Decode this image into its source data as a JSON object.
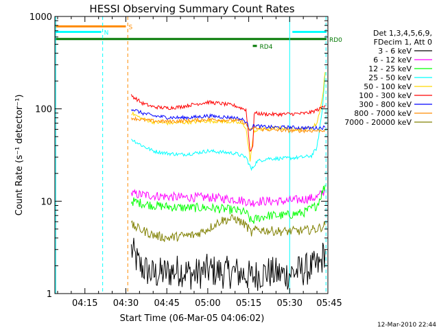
{
  "chart_data": {
    "type": "line",
    "title": "HESSI Observing Summary Count Rates",
    "xlabel": "Start Time (06-Mar-05 04:06:02)",
    "ylabel": "Count Rate (s⁻¹ detector⁻¹)",
    "yscale": "log",
    "ylim": [
      1,
      1000
    ],
    "xlim_minutes": [
      4.0,
      104.0
    ],
    "x_ticks": [
      {
        "label": "04:15",
        "minute": 15
      },
      {
        "label": "04:30",
        "minute": 30
      },
      {
        "label": "04:45",
        "minute": 45
      },
      {
        "label": "05:00",
        "minute": 60
      },
      {
        "label": "05:15",
        "minute": 75
      },
      {
        "label": "05:30",
        "minute": 90
      },
      {
        "label": "05:45",
        "minute": 105
      }
    ],
    "y_ticks": [
      {
        "label": "1",
        "value": 1
      },
      {
        "label": "10",
        "value": 10
      },
      {
        "label": "100",
        "value": 100
      },
      {
        "label": "1000",
        "value": 1000
      }
    ],
    "legend_header": [
      "Det 1,3,4,5,6,9,",
      "FDecim 1, Att 0"
    ],
    "legend_placement": "right",
    "series": [
      {
        "name": "3 - 6 keV",
        "color": "#000000",
        "points": [
          [
            32,
            3.0
          ],
          [
            35,
            2.0
          ],
          [
            40,
            1.6
          ],
          [
            45,
            1.7
          ],
          [
            50,
            1.8
          ],
          [
            55,
            1.6
          ],
          [
            60,
            1.8
          ],
          [
            65,
            1.7
          ],
          [
            70,
            1.7
          ],
          [
            74,
            1.6
          ],
          [
            76,
            1.5
          ],
          [
            78,
            1.6
          ],
          [
            82,
            1.7
          ],
          [
            88,
            1.6
          ],
          [
            95,
            1.8
          ],
          [
            101,
            2.0
          ],
          [
            103,
            3.0
          ]
        ]
      },
      {
        "name": "6 - 12 keV",
        "color": "#ff00ff",
        "points": [
          [
            32,
            12
          ],
          [
            40,
            11.5
          ],
          [
            50,
            11
          ],
          [
            60,
            11
          ],
          [
            70,
            10.5
          ],
          [
            74,
            10
          ],
          [
            76,
            9.5
          ],
          [
            78,
            10
          ],
          [
            82,
            10
          ],
          [
            88,
            10
          ],
          [
            95,
            10.5
          ],
          [
            100,
            11
          ],
          [
            103,
            13
          ]
        ]
      },
      {
        "name": "12 - 25 keV",
        "color": "#00ff00",
        "points": [
          [
            32,
            10
          ],
          [
            40,
            9
          ],
          [
            50,
            8.5
          ],
          [
            60,
            8.5
          ],
          [
            70,
            8
          ],
          [
            74,
            7.5
          ],
          [
            76,
            6
          ],
          [
            78,
            6.5
          ],
          [
            82,
            7
          ],
          [
            88,
            7
          ],
          [
            95,
            7.5
          ],
          [
            100,
            9
          ],
          [
            103,
            15
          ]
        ]
      },
      {
        "name": "25 - 50 keV",
        "color": "#00ffff",
        "points": [
          [
            32,
            47
          ],
          [
            36,
            40
          ],
          [
            40,
            35
          ],
          [
            45,
            33
          ],
          [
            50,
            32
          ],
          [
            55,
            33
          ],
          [
            60,
            35
          ],
          [
            65,
            34
          ],
          [
            70,
            33
          ],
          [
            74,
            30
          ],
          [
            76,
            22
          ],
          [
            78,
            27
          ],
          [
            82,
            29
          ],
          [
            88,
            29
          ],
          [
            95,
            30
          ],
          [
            98,
            31
          ],
          [
            100,
            38
          ],
          [
            102,
            100
          ],
          [
            103,
            250
          ]
        ]
      },
      {
        "name": "50 - 100 keV",
        "color": "#ffd700",
        "points": [
          [
            32,
            90
          ],
          [
            36,
            78
          ],
          [
            40,
            72
          ],
          [
            45,
            70
          ],
          [
            50,
            71
          ],
          [
            55,
            72
          ],
          [
            60,
            74
          ],
          [
            65,
            73
          ],
          [
            70,
            72
          ],
          [
            73,
            68
          ],
          [
            74,
            62
          ],
          [
            75.5,
            28
          ],
          [
            77,
            58
          ],
          [
            80,
            60
          ],
          [
            85,
            62
          ],
          [
            90,
            61
          ],
          [
            95,
            60
          ],
          [
            98,
            62
          ],
          [
            100,
            70
          ],
          [
            102,
            130
          ],
          [
            103,
            250
          ]
        ]
      },
      {
        "name": "100 - 300 keV",
        "color": "#ff0000",
        "points": [
          [
            32,
            140
          ],
          [
            36,
            115
          ],
          [
            40,
            105
          ],
          [
            45,
            102
          ],
          [
            50,
            105
          ],
          [
            55,
            112
          ],
          [
            60,
            118
          ],
          [
            65,
            114
          ],
          [
            70,
            108
          ],
          [
            73,
            100
          ],
          [
            74,
            98
          ],
          [
            75,
            50
          ],
          [
            75.5,
            35
          ],
          [
            76.5,
            38
          ],
          [
            77,
            90
          ],
          [
            80,
            88
          ],
          [
            85,
            87
          ],
          [
            90,
            88
          ],
          [
            95,
            89
          ],
          [
            98,
            92
          ],
          [
            101,
            100
          ],
          [
            103,
            110
          ]
        ]
      },
      {
        "name": "300 - 800 keV",
        "color": "#0000ff",
        "points": [
          [
            32,
            100
          ],
          [
            36,
            90
          ],
          [
            40,
            84
          ],
          [
            45,
            81
          ],
          [
            50,
            80
          ],
          [
            55,
            81
          ],
          [
            60,
            84
          ],
          [
            65,
            82
          ],
          [
            70,
            80
          ],
          [
            73,
            76
          ],
          [
            74,
            72
          ],
          [
            75.5,
            60
          ],
          [
            77,
            66
          ],
          [
            80,
            64
          ],
          [
            85,
            63
          ],
          [
            90,
            63
          ],
          [
            95,
            62
          ],
          [
            100,
            62
          ],
          [
            103,
            63
          ]
        ]
      },
      {
        "name": "800 - 7000 keV",
        "color": "#ff8c00",
        "points": [
          [
            32,
            80
          ],
          [
            36,
            76
          ],
          [
            40,
            74
          ],
          [
            45,
            73
          ],
          [
            50,
            74
          ],
          [
            55,
            75
          ],
          [
            60,
            77
          ],
          [
            65,
            76
          ],
          [
            70,
            75
          ],
          [
            73,
            72
          ],
          [
            74,
            68
          ],
          [
            75.5,
            58
          ],
          [
            77,
            62
          ],
          [
            80,
            60
          ],
          [
            85,
            59
          ],
          [
            90,
            58
          ],
          [
            95,
            58
          ],
          [
            100,
            58
          ],
          [
            103,
            59
          ]
        ]
      },
      {
        "name": "7000 - 20000 keV",
        "color": "#808000",
        "points": [
          [
            32,
            5.5
          ],
          [
            35,
            5
          ],
          [
            40,
            4.3
          ],
          [
            45,
            4
          ],
          [
            50,
            4.2
          ],
          [
            55,
            4.3
          ],
          [
            60,
            5
          ],
          [
            65,
            6.2
          ],
          [
            70,
            6.5
          ],
          [
            74,
            5.5
          ],
          [
            76,
            4.5
          ],
          [
            78,
            5
          ],
          [
            82,
            4.8
          ],
          [
            88,
            4.7
          ],
          [
            95,
            4.8
          ],
          [
            100,
            5
          ],
          [
            103,
            5.5
          ]
        ]
      }
    ],
    "vertical_markers": [
      {
        "minute": 4.3,
        "color": "#00ffff",
        "style": "solid"
      },
      {
        "minute": 21.5,
        "color": "#00ffff",
        "style": "dashed"
      },
      {
        "minute": 30.7,
        "color": "#ff8c00",
        "style": "dashed"
      },
      {
        "minute": 90.0,
        "color": "#00ffff",
        "style": "solid"
      },
      {
        "minute": 103.3,
        "color": "#00ffff",
        "style": "dashed"
      }
    ],
    "flag_bars": [
      {
        "label": "S",
        "color": "#ff8c00",
        "start": 4.0,
        "end": 30.0,
        "value": 780
      },
      {
        "label": "N",
        "color": "#00ffff",
        "start": 4.0,
        "end": 21.0,
        "value": 680
      },
      {
        "label": "RD0",
        "color": "#007700",
        "start": 4.0,
        "end": 103.5,
        "value": 570
      },
      {
        "label": "",
        "color": "#00ffff",
        "start": 91.0,
        "end": 103.5,
        "value": 680
      },
      {
        "label": "RD4",
        "color": "#007700",
        "start": 76.5,
        "end": 78.0,
        "value": 480
      }
    ],
    "timestamp": "12-Mar-2010 22:44"
  }
}
